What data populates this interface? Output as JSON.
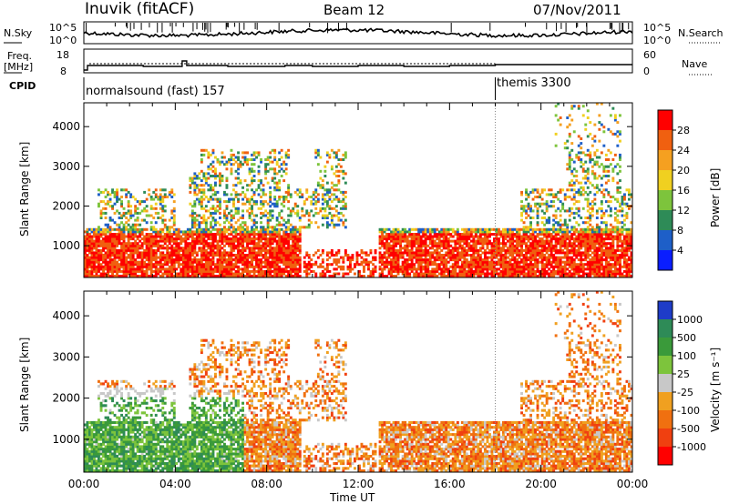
{
  "header": {
    "station": "Inuvik (fitACF)",
    "beam": "Beam 12",
    "date": "07/Nov/2011"
  },
  "noise_panel": {
    "left_label": "N.Sky",
    "right_label": "N.Search",
    "left_ticks": [
      "10^5",
      "10^0"
    ],
    "right_ticks": [
      "10^5",
      "10^0"
    ]
  },
  "freq_panel": {
    "left_label_line1": "Freq.",
    "left_label_line2": "[MHz]",
    "right_label": "Nave",
    "left_ticks": [
      "18",
      "8"
    ],
    "right_ticks": [
      "60",
      "0"
    ]
  },
  "cpid_panel": {
    "label": "CPID",
    "modes": [
      {
        "name": "normalsound (fast) 157",
        "start_hour": 0
      },
      {
        "name": "themis 3300",
        "start_hour": 18
      }
    ]
  },
  "chart_data": [
    {
      "type": "heatmap",
      "name": "power",
      "xlabel": "",
      "ylabel": "Slant Range [km]",
      "xlim": [
        0,
        24
      ],
      "ylim": [
        200,
        4600
      ],
      "yticks": [
        1000,
        2000,
        3000,
        4000
      ],
      "colorbar_label": "Power [dB]",
      "colorbar_ticks": [
        "28",
        "24",
        "20",
        "16",
        "12",
        "8",
        "4"
      ],
      "colorbar_colors": [
        "#0a1eff",
        "#1e5fc8",
        "#2e8b57",
        "#7dc43c",
        "#f0d020",
        "#f5a020",
        "#f06010",
        "#ff0000"
      ]
    },
    {
      "type": "heatmap",
      "name": "velocity",
      "xlabel": "Time UT",
      "ylabel": "Slant Range [km]",
      "xlim": [
        0,
        24
      ],
      "ylim": [
        200,
        4600
      ],
      "yticks": [
        1000,
        2000,
        3000,
        4000
      ],
      "xticks": [
        "00:00",
        "04:00",
        "08:00",
        "12:00",
        "16:00",
        "20:00",
        "00:00"
      ],
      "colorbar_label": "Velocity [m s⁻¹]",
      "colorbar_ticks": [
        "1000",
        "500",
        "100",
        "25",
        "-25",
        "-100",
        "-500",
        "-1000"
      ],
      "colorbar_colors": [
        "#1e3cc8",
        "#2e8b57",
        "#3a9a3a",
        "#7dc43c",
        "#c8c8c8",
        "#f0a020",
        "#f07010",
        "#f04010",
        "#ff0000"
      ]
    }
  ]
}
